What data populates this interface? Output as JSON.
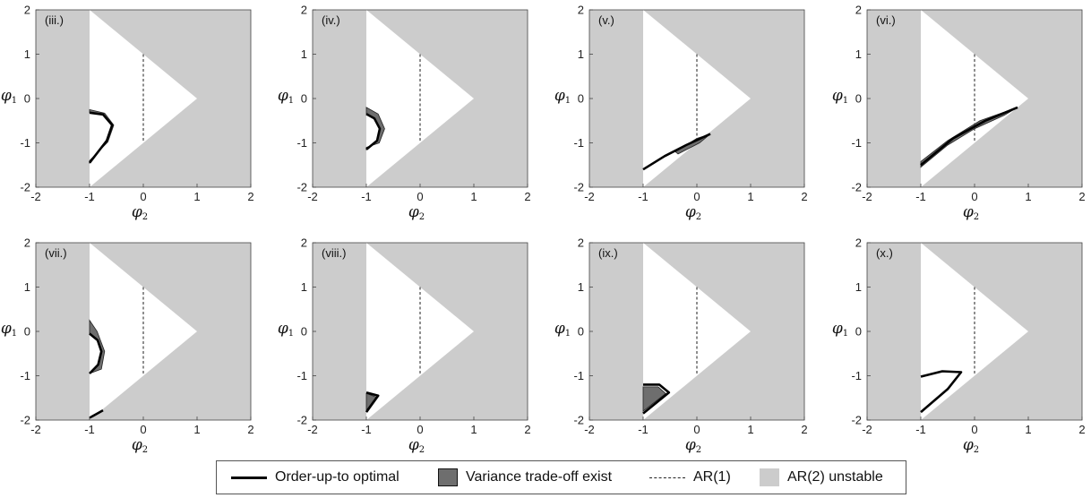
{
  "colors": {
    "unstable": "#cccccc",
    "tradeoff": "#6e6e6e",
    "optimal": "#000000",
    "ar1": "#333333"
  },
  "legend": {
    "items": [
      {
        "symbol": "solid-line",
        "label": "Order-up-to optimal"
      },
      {
        "symbol": "dark-patch",
        "label": "Variance trade-off exist"
      },
      {
        "symbol": "dashed-line",
        "label": "AR(1)"
      },
      {
        "symbol": "light-patch",
        "label": "AR(2) unstable"
      }
    ]
  },
  "chart_data": [
    {
      "type": "area",
      "panel_label": "(iii.)",
      "xlabel": "φ",
      "xlabel_sub": "2",
      "ylabel": "φ",
      "ylabel_sub": "1",
      "xlim": [
        -2,
        2
      ],
      "ylim": [
        -2,
        2
      ],
      "xticks": [
        "-2",
        "-1",
        "0",
        "1",
        "2"
      ],
      "yticks": [
        "2",
        "1",
        "0",
        "-1",
        "-2"
      ],
      "stability_triangle": [
        [
          -1,
          2
        ],
        [
          1,
          0
        ],
        [
          -1,
          -2
        ]
      ],
      "ar1_line": [
        [
          0,
          1
        ],
        [
          0,
          -1
        ]
      ],
      "optimal_curve": [
        [
          -1,
          -0.32
        ],
        [
          -0.75,
          -0.36
        ],
        [
          -0.58,
          -0.6
        ],
        [
          -0.68,
          -0.95
        ],
        [
          -1,
          -1.45
        ]
      ],
      "tradeoff_region": [
        [
          -1,
          -0.25
        ],
        [
          -0.72,
          -0.33
        ],
        [
          -0.55,
          -0.6
        ],
        [
          -0.66,
          -0.98
        ],
        [
          -1,
          -1.4
        ],
        [
          -1,
          -1.45
        ],
        [
          -0.68,
          -0.95
        ],
        [
          -0.58,
          -0.6
        ],
        [
          -0.75,
          -0.36
        ],
        [
          -1,
          -0.32
        ]
      ]
    },
    {
      "type": "area",
      "panel_label": "(iv.)",
      "xlabel": "φ",
      "xlabel_sub": "2",
      "ylabel": "φ",
      "ylabel_sub": "1",
      "xlim": [
        -2,
        2
      ],
      "ylim": [
        -2,
        2
      ],
      "xticks": [
        "-2",
        "-1",
        "0",
        "1",
        "2"
      ],
      "yticks": [
        "2",
        "1",
        "0",
        "-1",
        "-2"
      ],
      "stability_triangle": [
        [
          -1,
          2
        ],
        [
          1,
          0
        ],
        [
          -1,
          -2
        ]
      ],
      "ar1_line": [
        [
          0,
          1
        ],
        [
          0,
          -1
        ]
      ],
      "optimal_curve": [
        [
          -1,
          -0.35
        ],
        [
          -0.85,
          -0.45
        ],
        [
          -0.75,
          -0.68
        ],
        [
          -0.8,
          -0.95
        ],
        [
          -1,
          -1.15
        ]
      ],
      "tradeoff_region": [
        [
          -1,
          -0.2
        ],
        [
          -0.78,
          -0.35
        ],
        [
          -0.66,
          -0.68
        ],
        [
          -0.76,
          -1.0
        ],
        [
          -1,
          -1.1
        ],
        [
          -1,
          -1.15
        ],
        [
          -0.8,
          -0.95
        ],
        [
          -0.75,
          -0.68
        ],
        [
          -0.85,
          -0.45
        ],
        [
          -1,
          -0.35
        ]
      ]
    },
    {
      "type": "area",
      "panel_label": "(v.)",
      "xlabel": "φ",
      "xlabel_sub": "2",
      "ylabel": "φ",
      "ylabel_sub": "1",
      "xlim": [
        -2,
        2
      ],
      "ylim": [
        -2,
        2
      ],
      "xticks": [
        "-2",
        "-1",
        "0",
        "1",
        "2"
      ],
      "yticks": [
        "2",
        "1",
        "0",
        "-1",
        "-2"
      ],
      "stability_triangle": [
        [
          -1,
          2
        ],
        [
          1,
          0
        ],
        [
          -1,
          -2
        ]
      ],
      "ar1_line": [
        [
          0,
          1
        ],
        [
          0,
          -1
        ]
      ],
      "optimal_curve": [
        [
          -1,
          -1.6
        ],
        [
          -0.6,
          -1.3
        ],
        [
          -0.2,
          -1.05
        ],
        [
          0.25,
          -0.8
        ]
      ],
      "tradeoff_region": [
        [
          -0.4,
          -1.2
        ],
        [
          0.0,
          -0.9
        ],
        [
          0.25,
          -0.8
        ],
        [
          0.05,
          -1.0
        ],
        [
          -0.35,
          -1.25
        ]
      ]
    },
    {
      "type": "area",
      "panel_label": "(vi.)",
      "xlabel": "φ",
      "xlabel_sub": "2",
      "ylabel": "φ",
      "ylabel_sub": "1",
      "xlim": [
        -2,
        2
      ],
      "ylim": [
        -2,
        2
      ],
      "xticks": [
        "-2",
        "-1",
        "0",
        "1",
        "2"
      ],
      "yticks": [
        "2",
        "1",
        "0",
        "-1",
        "-2"
      ],
      "stability_triangle": [
        [
          -1,
          2
        ],
        [
          1,
          0
        ],
        [
          -1,
          -2
        ]
      ],
      "ar1_line": [
        [
          0,
          1
        ],
        [
          0,
          -1
        ]
      ],
      "optimal_curve": [
        [
          -1,
          -1.5
        ],
        [
          -0.4,
          -0.9
        ],
        [
          0.2,
          -0.5
        ],
        [
          0.8,
          -0.2
        ]
      ],
      "tradeoff_region": [
        [
          -1,
          -1.42
        ],
        [
          -0.5,
          -0.95
        ],
        [
          0.1,
          -0.5
        ],
        [
          0.8,
          -0.2
        ],
        [
          0.55,
          -0.38
        ],
        [
          0.0,
          -0.68
        ],
        [
          -0.5,
          -1.05
        ],
        [
          -1,
          -1.55
        ]
      ]
    },
    {
      "type": "area",
      "panel_label": "(vii.)",
      "xlabel": "φ",
      "xlabel_sub": "2",
      "ylabel": "φ",
      "ylabel_sub": "1",
      "xlim": [
        -2,
        2
      ],
      "ylim": [
        -2,
        2
      ],
      "xticks": [
        "-2",
        "-1",
        "0",
        "1",
        "2"
      ],
      "yticks": [
        "2",
        "1",
        "0",
        "-1",
        "-2"
      ],
      "stability_triangle": [
        [
          -1,
          2
        ],
        [
          1,
          0
        ],
        [
          -1,
          -2
        ]
      ],
      "ar1_line": [
        [
          0,
          1
        ],
        [
          0,
          -1
        ]
      ],
      "optimal_curve": [
        [
          -1,
          -0.05
        ],
        [
          -0.85,
          -0.2
        ],
        [
          -0.78,
          -0.45
        ],
        [
          -0.84,
          -0.75
        ],
        [
          -1,
          -0.95
        ]
      ],
      "optimal_curve_2": [
        [
          -1,
          -1.95
        ],
        [
          -0.75,
          -1.78
        ]
      ],
      "tradeoff_region": [
        [
          -1,
          0.25
        ],
        [
          -0.86,
          0.0
        ],
        [
          -0.72,
          -0.45
        ],
        [
          -0.78,
          -0.85
        ],
        [
          -1,
          -0.95
        ],
        [
          -0.84,
          -0.75
        ],
        [
          -0.78,
          -0.45
        ],
        [
          -0.85,
          -0.2
        ],
        [
          -1,
          -0.05
        ]
      ]
    },
    {
      "type": "area",
      "panel_label": "(viii.)",
      "xlabel": "φ",
      "xlabel_sub": "2",
      "ylabel": "φ",
      "ylabel_sub": "1",
      "xlim": [
        -2,
        2
      ],
      "ylim": [
        -2,
        2
      ],
      "xticks": [
        "-2",
        "-1",
        "0",
        "1",
        "2"
      ],
      "yticks": [
        "2",
        "1",
        "0",
        "-1",
        "-2"
      ],
      "stability_triangle": [
        [
          -1,
          2
        ],
        [
          1,
          0
        ],
        [
          -1,
          -2
        ]
      ],
      "ar1_line": [
        [
          0,
          1
        ],
        [
          0,
          -1
        ]
      ],
      "optimal_curve": [
        [
          -1,
          -1.38
        ],
        [
          -0.78,
          -1.45
        ],
        [
          -1,
          -1.82
        ]
      ],
      "tradeoff_region": [
        [
          -1,
          -1.4
        ],
        [
          -0.82,
          -1.48
        ],
        [
          -1,
          -1.78
        ]
      ]
    },
    {
      "type": "area",
      "panel_label": "(ix.)",
      "xlabel": "φ",
      "xlabel_sub": "2",
      "ylabel": "φ",
      "ylabel_sub": "1",
      "xlim": [
        -2,
        2
      ],
      "ylim": [
        -2,
        2
      ],
      "xticks": [
        "-2",
        "-1",
        "0",
        "1",
        "2"
      ],
      "yticks": [
        "2",
        "1",
        "0",
        "-1",
        "-2"
      ],
      "stability_triangle": [
        [
          -1,
          2
        ],
        [
          1,
          0
        ],
        [
          -1,
          -2
        ]
      ],
      "ar1_line": [
        [
          0,
          1
        ],
        [
          0,
          -1
        ]
      ],
      "optimal_curve": [
        [
          -1,
          -1.2
        ],
        [
          -0.7,
          -1.2
        ],
        [
          -0.52,
          -1.38
        ],
        [
          -1,
          -1.85
        ]
      ],
      "tradeoff_region": [
        [
          -1,
          -1.25
        ],
        [
          -0.72,
          -1.25
        ],
        [
          -0.58,
          -1.4
        ],
        [
          -1,
          -1.8
        ]
      ]
    },
    {
      "type": "area",
      "panel_label": "(x.)",
      "xlabel": "φ",
      "xlabel_sub": "2",
      "ylabel": "φ",
      "ylabel_sub": "1",
      "xlim": [
        -2,
        2
      ],
      "ylim": [
        -2,
        2
      ],
      "xticks": [
        "-2",
        "-1",
        "0",
        "1",
        "2"
      ],
      "yticks": [
        "2",
        "1",
        "0",
        "-1",
        "-2"
      ],
      "stability_triangle": [
        [
          -1,
          2
        ],
        [
          1,
          0
        ],
        [
          -1,
          -2
        ]
      ],
      "ar1_line": [
        [
          0,
          1
        ],
        [
          0,
          -1
        ]
      ],
      "optimal_curve": [
        [
          -1,
          -1.02
        ],
        [
          -0.6,
          -0.9
        ],
        [
          -0.25,
          -0.92
        ],
        [
          -0.5,
          -1.3
        ],
        [
          -1,
          -1.82
        ]
      ],
      "tradeoff_region": []
    }
  ]
}
